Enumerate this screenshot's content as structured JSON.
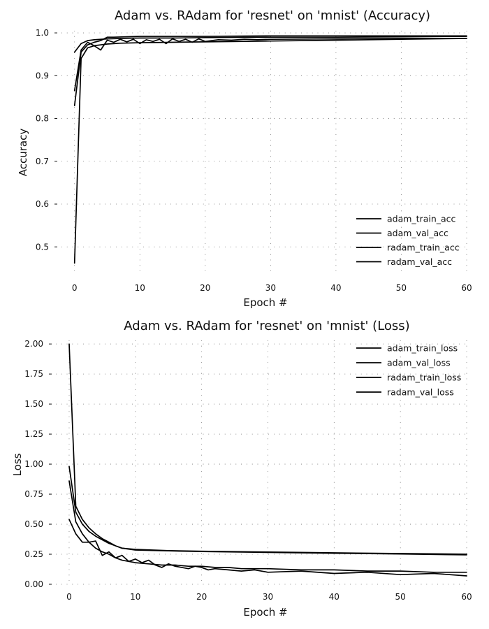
{
  "chart_data": [
    {
      "type": "line",
      "title": "Adam vs. RAdam for 'resnet' on 'mnist' (Accuracy)",
      "xlabel": "Epoch #",
      "ylabel": "Accuracy",
      "xlim": [
        -2,
        60
      ],
      "ylim": [
        0.44,
        1.005
      ],
      "xticks": [
        0,
        10,
        20,
        30,
        40,
        50,
        60
      ],
      "yticks": [
        0.5,
        0.6,
        0.7,
        0.8,
        0.9,
        1.0
      ],
      "ytick_labels": [
        "0.5",
        "0.6",
        "0.7",
        "0.8",
        "0.9",
        "1.0"
      ],
      "grid": true,
      "legend": "lower-right",
      "series": [
        {
          "name": "adam_train_acc",
          "x": [
            0,
            1,
            2,
            3,
            5,
            7,
            10,
            15,
            20,
            30,
            40,
            50,
            60
          ],
          "y": [
            0.955,
            0.975,
            0.982,
            0.984,
            0.986,
            0.987,
            0.988,
            0.988,
            0.989,
            0.99,
            0.99,
            0.991,
            0.992
          ]
        },
        {
          "name": "adam_val_acc",
          "x": [
            0,
            1,
            2,
            3,
            4,
            5,
            6,
            7,
            8,
            9,
            10,
            11,
            12,
            13,
            14,
            15,
            16,
            17,
            18,
            19,
            20,
            22,
            24,
            26,
            28,
            30,
            40,
            50,
            60
          ],
          "y": [
            0.865,
            0.96,
            0.978,
            0.97,
            0.96,
            0.983,
            0.978,
            0.985,
            0.979,
            0.985,
            0.975,
            0.984,
            0.98,
            0.985,
            0.975,
            0.986,
            0.98,
            0.985,
            0.978,
            0.986,
            0.98,
            0.984,
            0.983,
            0.985,
            0.984,
            0.985,
            0.986,
            0.987,
            0.987
          ]
        },
        {
          "name": "radam_train_acc",
          "x": [
            0,
            1,
            2,
            3,
            5,
            7,
            10,
            15,
            20,
            30,
            40,
            50,
            60
          ],
          "y": [
            0.462,
            0.94,
            0.965,
            0.97,
            0.974,
            0.976,
            0.977,
            0.978,
            0.979,
            0.981,
            0.983,
            0.985,
            0.987
          ]
        },
        {
          "name": "radam_val_acc",
          "x": [
            0,
            1,
            2,
            3,
            4,
            5,
            6,
            8,
            10,
            15,
            20,
            30,
            40,
            50,
            60
          ],
          "y": [
            0.83,
            0.955,
            0.972,
            0.978,
            0.982,
            0.99,
            0.99,
            0.991,
            0.992,
            0.992,
            0.992,
            0.993,
            0.993,
            0.993,
            0.993
          ]
        }
      ]
    },
    {
      "type": "line",
      "title": "Adam vs. RAdam for 'resnet' on 'mnist' (Loss)",
      "xlabel": "Epoch #",
      "ylabel": "Loss",
      "xlim": [
        -2,
        60
      ],
      "ylim": [
        0,
        2.03
      ],
      "xticks": [
        0,
        10,
        20,
        30,
        40,
        50,
        60
      ],
      "yticks": [
        0,
        0.25,
        0.5,
        0.75,
        1.0,
        1.25,
        1.5,
        1.75,
        2.0
      ],
      "ytick_labels": [
        "0.00",
        "0.25",
        "0.50",
        "0.75",
        "1.00",
        "1.25",
        "1.50",
        "1.75",
        "2.00"
      ],
      "grid": true,
      "legend": "upper-right",
      "series": [
        {
          "name": "adam_train_loss",
          "x": [
            0,
            1,
            2,
            3,
            4,
            5,
            6,
            7,
            8,
            10,
            15,
            20,
            30,
            40,
            50,
            60
          ],
          "y": [
            0.98,
            0.6,
            0.5,
            0.44,
            0.4,
            0.37,
            0.34,
            0.32,
            0.3,
            0.285,
            0.278,
            0.272,
            0.265,
            0.258,
            0.252,
            0.245
          ]
        },
        {
          "name": "adam_val_loss",
          "x": [
            0,
            1,
            2,
            3,
            4,
            5,
            6,
            7,
            8,
            9,
            10,
            11,
            12,
            13,
            14,
            15,
            16,
            17,
            18,
            19,
            20,
            21,
            22,
            24,
            26,
            28,
            30,
            35,
            40,
            45,
            50,
            55,
            60
          ],
          "y": [
            0.54,
            0.42,
            0.35,
            0.35,
            0.36,
            0.24,
            0.27,
            0.22,
            0.24,
            0.19,
            0.21,
            0.18,
            0.2,
            0.16,
            0.14,
            0.17,
            0.15,
            0.14,
            0.13,
            0.15,
            0.14,
            0.12,
            0.13,
            0.12,
            0.11,
            0.12,
            0.1,
            0.11,
            0.09,
            0.1,
            0.08,
            0.09,
            0.07
          ]
        },
        {
          "name": "radam_train_loss",
          "x": [
            0,
            1,
            2,
            3,
            4,
            5,
            6,
            7,
            8,
            10,
            15,
            20,
            30,
            40,
            50,
            60
          ],
          "y": [
            2.0,
            0.65,
            0.54,
            0.47,
            0.42,
            0.38,
            0.35,
            0.32,
            0.3,
            0.29,
            0.28,
            0.275,
            0.268,
            0.262,
            0.256,
            0.25
          ]
        },
        {
          "name": "radam_val_loss",
          "x": [
            0,
            1,
            2,
            3,
            4,
            5,
            6,
            7,
            8,
            10,
            12,
            14,
            16,
            18,
            20,
            22,
            24,
            26,
            28,
            30,
            35,
            40,
            45,
            50,
            55,
            60
          ],
          "y": [
            0.86,
            0.52,
            0.42,
            0.35,
            0.3,
            0.27,
            0.25,
            0.22,
            0.2,
            0.18,
            0.17,
            0.16,
            0.16,
            0.15,
            0.15,
            0.14,
            0.14,
            0.13,
            0.13,
            0.13,
            0.12,
            0.12,
            0.11,
            0.11,
            0.1,
            0.1
          ]
        }
      ]
    }
  ]
}
